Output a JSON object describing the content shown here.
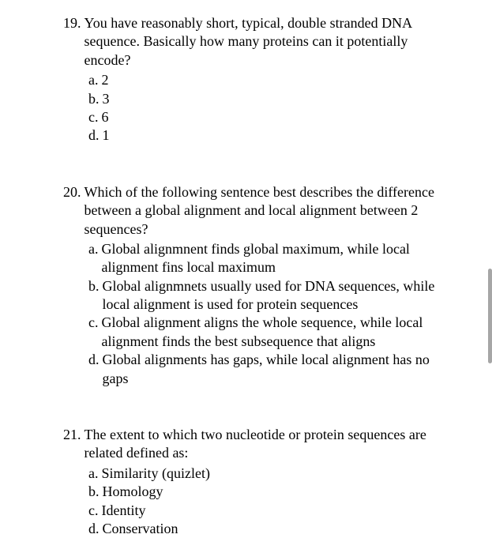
{
  "questions": [
    {
      "number": "19.",
      "text": "You have reasonably short, typical, double stranded DNA sequence. Basically how many proteins can it potentially encode?",
      "options": [
        {
          "letter": "a.",
          "text": "2"
        },
        {
          "letter": "b.",
          "text": "3"
        },
        {
          "letter": "c.",
          "text": "6"
        },
        {
          "letter": "d.",
          "text": "1"
        }
      ]
    },
    {
      "number": "20.",
      "text": "Which of the following sentence best describes the difference between a global alignment and local alignment between 2 sequences?",
      "options": [
        {
          "letter": "a.",
          "text": "Global alignmnent finds global maximum, while local alignment fins local maximum"
        },
        {
          "letter": "b.",
          "text": "Global alignmnets usually used for DNA sequences, while local alignment is used for protein sequences"
        },
        {
          "letter": "c.",
          "text": "Global alignment aligns the whole sequence, while local alignment finds the best subsequence that aligns"
        },
        {
          "letter": "d.",
          "text": "Global alignments has gaps, while local alignment has no gaps"
        }
      ]
    },
    {
      "number": "21.",
      "text": "The extent to which two nucleotide or protein sequences are related defined as:",
      "options": [
        {
          "letter": "a.",
          "text": "Similarity (quizlet)"
        },
        {
          "letter": "b.",
          "text": "Homology"
        },
        {
          "letter": "c.",
          "text": "Identity"
        },
        {
          "letter": "d.",
          "text": "Conservation"
        }
      ]
    }
  ]
}
